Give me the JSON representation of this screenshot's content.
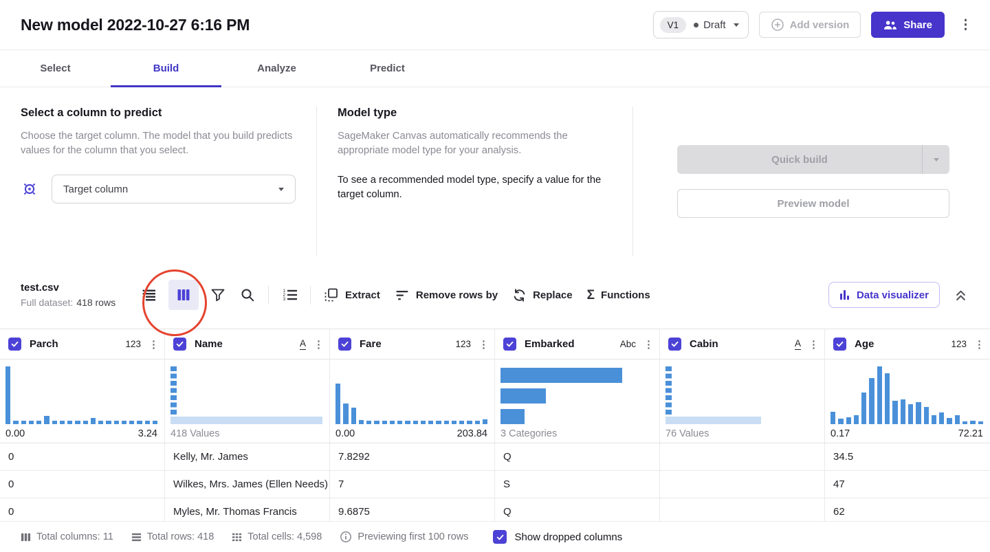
{
  "header": {
    "title": "New model 2022-10-27 6:16 PM",
    "version_badge": "V1",
    "version_status": "Draft",
    "add_version_label": "Add version",
    "share_label": "Share"
  },
  "tabs": [
    {
      "label": "Select",
      "active": false
    },
    {
      "label": "Build",
      "active": true
    },
    {
      "label": "Analyze",
      "active": false
    },
    {
      "label": "Predict",
      "active": false
    }
  ],
  "target_section": {
    "title": "Select a column to predict",
    "description": "Choose the target column. The model that you build predicts values for the column that you select.",
    "dropdown_placeholder": "Target column"
  },
  "model_type_section": {
    "title": "Model type",
    "description": "SageMaker Canvas automatically recommends the appropriate model type for your analysis.",
    "note": "To see a recommended model type, specify a value for the target column."
  },
  "build_actions": {
    "quick_build_label": "Quick build",
    "preview_model_label": "Preview model"
  },
  "dataset_toolbar": {
    "file_name": "test.csv",
    "file_meta_label": "Full dataset:",
    "file_meta_value": "418 rows",
    "actions": {
      "extract": "Extract",
      "remove_rows": "Remove rows by",
      "replace": "Replace",
      "functions": "Functions"
    },
    "data_visualizer_label": "Data visualizer"
  },
  "table": {
    "columns": [
      {
        "name": "Parch",
        "type_label": "123",
        "type_underline": false,
        "checked": true,
        "hist": {
          "kind": "numeric",
          "bars": [
            100,
            6,
            6,
            6,
            6,
            14,
            6,
            6,
            6,
            6,
            6,
            11,
            6,
            6,
            6,
            6,
            6,
            6,
            6,
            6
          ],
          "min_label": "0.00",
          "max_label": "3.24"
        }
      },
      {
        "name": "Name",
        "type_label": "A",
        "type_underline": true,
        "checked": true,
        "hist": {
          "kind": "unique",
          "base_width": 100,
          "label": "418 Values"
        }
      },
      {
        "name": "Fare",
        "type_label": "123",
        "type_underline": false,
        "checked": true,
        "hist": {
          "kind": "numeric",
          "bars": [
            70,
            36,
            28,
            7,
            6,
            6,
            6,
            6,
            6,
            6,
            6,
            6,
            6,
            6,
            6,
            6,
            6,
            6,
            6,
            8
          ],
          "min_label": "0.00",
          "max_label": "203.84"
        }
      },
      {
        "name": "Embarked",
        "type_label": "Abc",
        "type_underline": false,
        "checked": true,
        "hist": {
          "kind": "category",
          "bars": [
            80,
            30,
            16
          ],
          "label": "3 Categories"
        }
      },
      {
        "name": "Cabin",
        "type_label": "A",
        "type_underline": true,
        "checked": true,
        "hist": {
          "kind": "unique",
          "base_width": 63,
          "label": "76 Values"
        }
      },
      {
        "name": "Age",
        "type_label": "123",
        "type_underline": false,
        "checked": true,
        "hist": {
          "kind": "numeric",
          "bars": [
            22,
            9,
            12,
            15,
            55,
            80,
            100,
            88,
            40,
            43,
            35,
            38,
            30,
            16,
            20,
            11,
            15,
            5,
            6,
            5
          ],
          "min_label": "0.17",
          "max_label": "72.21"
        }
      }
    ],
    "rows": [
      [
        "0",
        "Kelly, Mr. James",
        "7.8292",
        "Q",
        "",
        "34.5"
      ],
      [
        "0",
        "Wilkes, Mrs. James (Ellen Needs)",
        "7",
        "S",
        "",
        "47"
      ],
      [
        "0",
        "Myles, Mr. Thomas Francis",
        "9.6875",
        "Q",
        "",
        "62"
      ]
    ]
  },
  "footer": {
    "total_columns": "Total columns: 11",
    "total_rows": "Total rows: 418",
    "total_cells": "Total cells: 4,598",
    "preview_note": "Previewing first 100 rows",
    "show_dropped_label": "Show dropped columns",
    "show_dropped_checked": true
  },
  "annotation": {
    "shape": "red-circle",
    "highlights": "columns-view-icon",
    "color": "#e5432e"
  },
  "colors": {
    "accent_indigo": "#4634cb",
    "checkbox_indigo": "#4d42d6",
    "histogram_bar": "#4a90d9",
    "histogram_base": "#c9def4",
    "disabled_button": "#dcdcde"
  }
}
